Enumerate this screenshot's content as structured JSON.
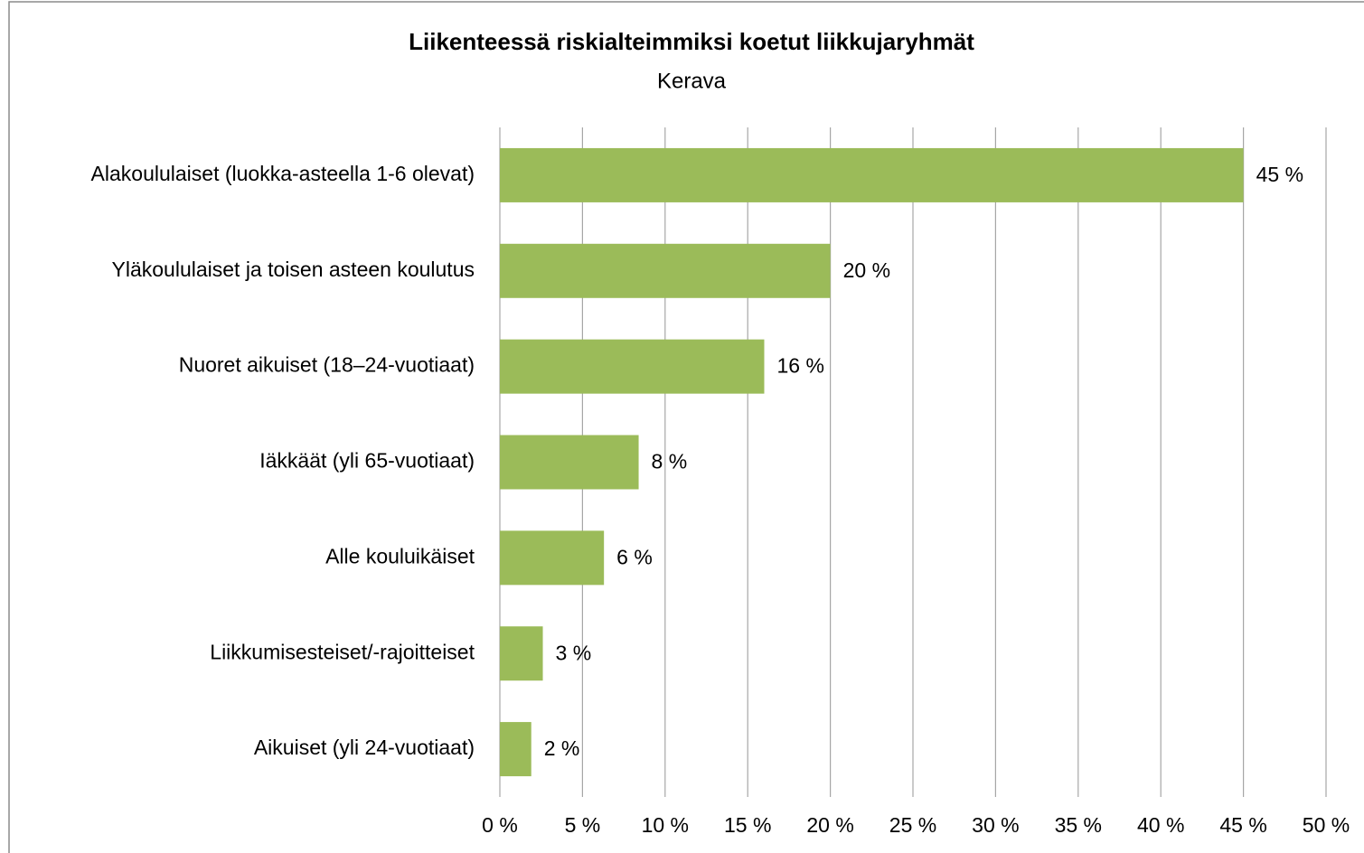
{
  "chart_data": {
    "type": "barh",
    "title": "Liikenteessä riskialteimmiksi koetut liikkujaryhmät",
    "subtitle": "Kerava",
    "categories": [
      "Alakoululaiset (luokka-asteella 1-6 olevat)",
      "Yläkoululaiset ja toisen asteen koulutus",
      "Nuoret aikuiset (18–24-vuotiaat)",
      "Iäkkäät (yli 65-vuotiaat)",
      "Alle kouluikäiset",
      "Liikkumisesteiset/-rajoitteiset",
      "Aikuiset (yli 24-vuotiaat)"
    ],
    "values": [
      45,
      20,
      16,
      8.4,
      6.3,
      2.6,
      1.9
    ],
    "value_labels": [
      "45 %",
      "20 %",
      "16 %",
      "8 %",
      "6 %",
      "3 %",
      "2 %"
    ],
    "color": "#9bbb59",
    "xlim": [
      0,
      50
    ],
    "xticks": [
      {
        "value": 0,
        "label": "0 %"
      },
      {
        "value": 5,
        "label": "5 %"
      },
      {
        "value": 10,
        "label": "10 %"
      },
      {
        "value": 15,
        "label": "15 %"
      },
      {
        "value": 20,
        "label": "20 %"
      },
      {
        "value": 25,
        "label": "25 %"
      },
      {
        "value": 30,
        "label": "30 %"
      },
      {
        "value": 35,
        "label": "35 %"
      },
      {
        "value": 40,
        "label": "40 %"
      },
      {
        "value": 45,
        "label": "45 %"
      },
      {
        "value": 50,
        "label": "50 %"
      }
    ],
    "grid": true
  }
}
